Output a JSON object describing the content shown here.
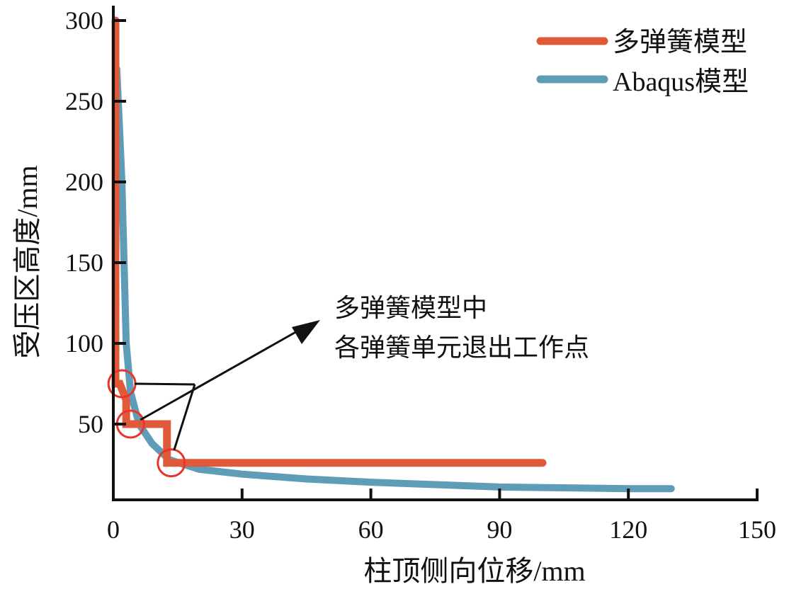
{
  "chart_data": {
    "type": "line",
    "xlabel": "柱顶侧向位移/mm",
    "ylabel": "受压区高度/mm",
    "xlim": [
      0,
      150
    ],
    "ylim": [
      -3,
      300
    ],
    "xticks": [
      0,
      30,
      60,
      90,
      120,
      150
    ],
    "yticks": [
      50,
      100,
      150,
      200,
      250,
      300
    ],
    "grid": false,
    "legend_position": "top-right",
    "series": [
      {
        "name": "多弹簧模型",
        "color": "#e05a3a",
        "x": [
          0.5,
          0.5,
          1.5,
          3,
          3,
          12.5,
          12.5,
          100
        ],
        "y": [
          300,
          75,
          75,
          65,
          50,
          50,
          26,
          26
        ]
      },
      {
        "name": "Abaqus模型",
        "color": "#5f9cb8",
        "x": [
          0.8,
          1.5,
          2,
          2.5,
          3,
          4,
          6,
          9,
          13,
          20,
          30,
          45,
          60,
          75,
          90,
          105,
          120,
          130
        ],
        "y": [
          270,
          230,
          200,
          150,
          100,
          70,
          50,
          38,
          28,
          22,
          19,
          16,
          14,
          12.5,
          11,
          10.5,
          10,
          10
        ]
      }
    ],
    "annotation": {
      "lines": [
        "多弹簧模型中",
        "各弹簧单元退出工作点"
      ],
      "points": [
        {
          "x": 2,
          "y": 75
        },
        {
          "x": 4,
          "y": 50
        },
        {
          "x": 13.5,
          "y": 26
        }
      ]
    }
  }
}
